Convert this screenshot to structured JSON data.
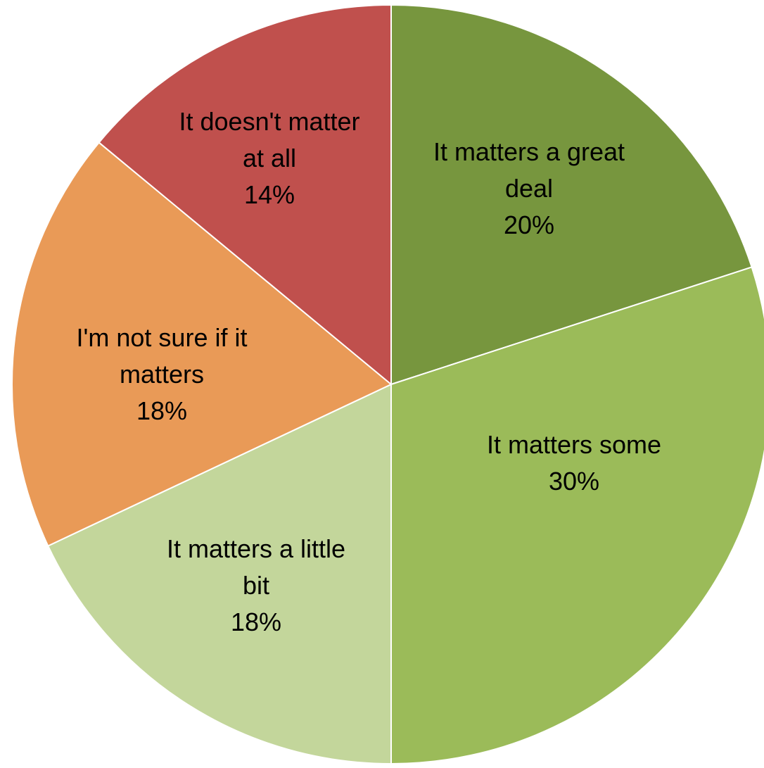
{
  "chart_data": {
    "type": "pie",
    "title": "",
    "slices": [
      {
        "label_lines": [
          "It matters a great",
          "deal"
        ],
        "pct_label": "20%",
        "value": 20,
        "color": "#77963e"
      },
      {
        "label_lines": [
          "It matters some"
        ],
        "pct_label": "30%",
        "value": 30,
        "color": "#9bbb59"
      },
      {
        "label_lines": [
          "It matters a little",
          "bit"
        ],
        "pct_label": "18%",
        "value": 18,
        "color": "#c3d69b"
      },
      {
        "label_lines": [
          "I'm not sure if it",
          "matters"
        ],
        "pct_label": "18%",
        "value": 18,
        "color": "#e99a57"
      },
      {
        "label_lines": [
          "It doesn't matter",
          "at all"
        ],
        "pct_label": "14%",
        "value": 14,
        "color": "#c0504d"
      }
    ],
    "legend": "none",
    "data_labels": "inside"
  }
}
